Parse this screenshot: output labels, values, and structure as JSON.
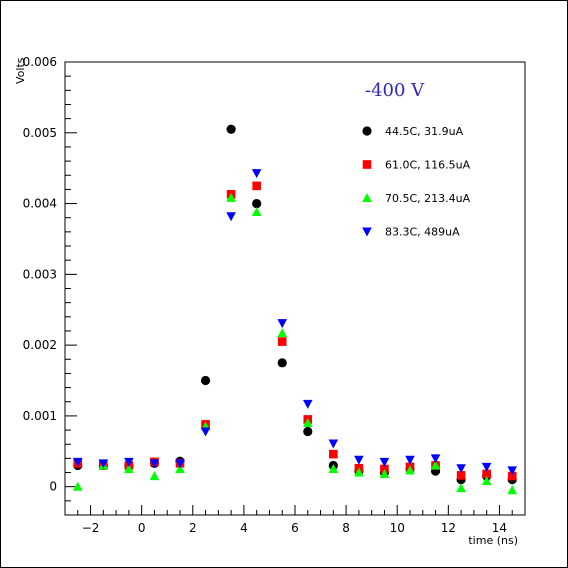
{
  "chart_data": {
    "type": "scatter",
    "title": "",
    "annotation": "-400 V",
    "xlabel": "time (ns)",
    "ylabel": "Volts",
    "xlim": [
      -3,
      15
    ],
    "ylim": [
      -0.0004,
      0.006
    ],
    "x_ticks": [
      -2,
      0,
      2,
      4,
      6,
      8,
      10,
      12,
      14
    ],
    "y_ticks": [
      0,
      0.001,
      0.002,
      0.003,
      0.004,
      0.005,
      0.006
    ],
    "y_tick_labels": [
      "0",
      "0.001",
      "0.002",
      "0.003",
      "0.004",
      "0.005",
      "0.006"
    ],
    "grid": false,
    "legend_position": "top-right",
    "series": [
      {
        "name": "44.5C, 31.9uA",
        "marker": "circle",
        "color": "#000000",
        "x": [
          -2.5,
          -1.5,
          -0.5,
          0.5,
          1.5,
          2.5,
          3.5,
          4.5,
          5.5,
          6.5,
          7.5,
          8.5,
          9.5,
          10.5,
          11.5,
          12.5,
          13.5,
          14.5
        ],
        "y": [
          0.0003,
          0.0003,
          0.0003,
          0.00033,
          0.00036,
          0.0015,
          0.00505,
          0.004,
          0.00175,
          0.00078,
          0.0003,
          0.00022,
          0.0002,
          0.00025,
          0.00022,
          0.0001,
          0.00015,
          0.0001
        ]
      },
      {
        "name": "61.0C, 116.5uA",
        "marker": "square",
        "color": "#ff0000",
        "x": [
          -2.5,
          -1.5,
          -0.5,
          0.5,
          1.5,
          2.5,
          3.5,
          4.5,
          5.5,
          6.5,
          7.5,
          8.5,
          9.5,
          10.5,
          11.5,
          12.5,
          13.5,
          14.5
        ],
        "y": [
          0.00033,
          0.0003,
          0.0003,
          0.00035,
          0.00033,
          0.00088,
          0.00413,
          0.00425,
          0.00205,
          0.00095,
          0.00046,
          0.00026,
          0.00025,
          0.00028,
          0.0003,
          0.00016,
          0.00018,
          0.00015
        ]
      },
      {
        "name": "70.5C, 213.4uA",
        "marker": "triangle-up",
        "color": "#00ff00",
        "x": [
          -2.5,
          -1.5,
          -0.5,
          0.5,
          1.5,
          2.5,
          3.5,
          4.5,
          5.5,
          6.5,
          7.5,
          8.5,
          9.5,
          10.5,
          11.5,
          12.5,
          13.5,
          14.5
        ],
        "y": [
          0.0,
          0.0003,
          0.00025,
          0.00015,
          0.00025,
          0.00085,
          0.00408,
          0.00388,
          0.00217,
          0.0009,
          0.00025,
          0.0002,
          0.00018,
          0.00023,
          0.0003,
          -2e-05,
          8e-05,
          -5e-05
        ]
      },
      {
        "name": "83.3C, 489uA",
        "marker": "triangle-down",
        "color": "#0000ff",
        "x": [
          -2.5,
          -1.5,
          -0.5,
          0.5,
          1.5,
          2.5,
          3.5,
          4.5,
          5.5,
          6.5,
          7.5,
          8.5,
          9.5,
          10.5,
          11.5,
          12.5,
          13.5,
          14.5
        ],
        "y": [
          0.00035,
          0.00033,
          0.00035,
          0.00033,
          0.00033,
          0.00078,
          0.00382,
          0.00443,
          0.00231,
          0.00117,
          0.00061,
          0.00038,
          0.00035,
          0.00038,
          0.0004,
          0.00026,
          0.00028,
          0.00023
        ]
      }
    ]
  }
}
